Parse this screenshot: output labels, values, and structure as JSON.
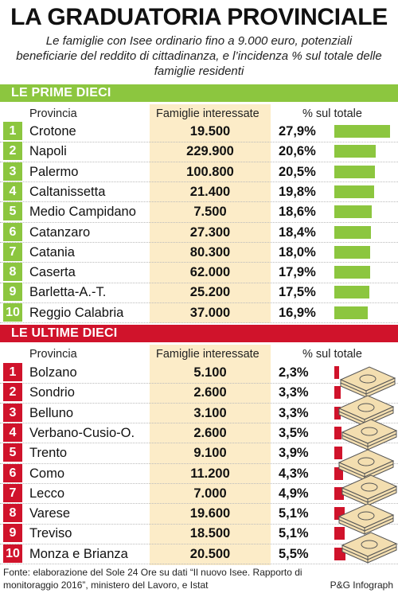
{
  "title": "LA GRADUATORIA PROVINCIALE",
  "subtitle": "Le famiglie con Isee ordinario fino a 9.000 euro, potenziali beneficiarie del reddito di cittadinanza, e l’incidenza % sul totale delle famiglie residenti",
  "columns": {
    "provincia": "Provincia",
    "famiglie": "Famiglie interessate",
    "pct": "% sul totale"
  },
  "colors": {
    "green": "#8cc63f",
    "red": "#d0132b",
    "shade": "#fcecc8"
  },
  "chart_data": [
    {
      "type": "bar",
      "section": "LE PRIME DIECI",
      "rows": [
        {
          "rank": "1",
          "provincia": "Crotone",
          "famiglie": "19.500",
          "pct_label": "27,9%",
          "pct": 27.9
        },
        {
          "rank": "2",
          "provincia": "Napoli",
          "famiglie": "229.900",
          "pct_label": "20,6%",
          "pct": 20.6
        },
        {
          "rank": "3",
          "provincia": "Palermo",
          "famiglie": "100.800",
          "pct_label": "20,5%",
          "pct": 20.5
        },
        {
          "rank": "4",
          "provincia": "Caltanissetta",
          "famiglie": "21.400",
          "pct_label": "19,8%",
          "pct": 19.8
        },
        {
          "rank": "5",
          "provincia": "Medio Campidano",
          "famiglie": "7.500",
          "pct_label": "18,6%",
          "pct": 18.6
        },
        {
          "rank": "6",
          "provincia": "Catanzaro",
          "famiglie": "27.300",
          "pct_label": "18,4%",
          "pct": 18.4
        },
        {
          "rank": "7",
          "provincia": "Catania",
          "famiglie": "80.300",
          "pct_label": "18,0%",
          "pct": 18.0
        },
        {
          "rank": "8",
          "provincia": "Caserta",
          "famiglie": "62.000",
          "pct_label": "17,9%",
          "pct": 17.9
        },
        {
          "rank": "9",
          "provincia": "Barletta-A.-T.",
          "famiglie": "25.200",
          "pct_label": "17,5%",
          "pct": 17.5
        },
        {
          "rank": "10",
          "provincia": "Reggio Calabria",
          "famiglie": "37.000",
          "pct_label": "16,9%",
          "pct": 16.9
        }
      ]
    },
    {
      "type": "bar",
      "section": "LE ULTIME DIECI",
      "rows": [
        {
          "rank": "1",
          "provincia": "Bolzano",
          "famiglie": "5.100",
          "pct_label": "2,3%",
          "pct": 2.3
        },
        {
          "rank": "2",
          "provincia": "Sondrio",
          "famiglie": "2.600",
          "pct_label": "3,3%",
          "pct": 3.3
        },
        {
          "rank": "3",
          "provincia": "Belluno",
          "famiglie": "3.100",
          "pct_label": "3,3%",
          "pct": 3.3
        },
        {
          "rank": "4",
          "provincia": "Verbano-Cusio-O.",
          "famiglie": "2.600",
          "pct_label": "3,5%",
          "pct": 3.5
        },
        {
          "rank": "5",
          "provincia": "Trento",
          "famiglie": "9.100",
          "pct_label": "3,9%",
          "pct": 3.9
        },
        {
          "rank": "6",
          "provincia": "Como",
          "famiglie": "11.200",
          "pct_label": "4,3%",
          "pct": 4.3
        },
        {
          "rank": "7",
          "provincia": "Lecco",
          "famiglie": "7.000",
          "pct_label": "4,9%",
          "pct": 4.9
        },
        {
          "rank": "8",
          "provincia": "Varese",
          "famiglie": "19.600",
          "pct_label": "5,1%",
          "pct": 5.1
        },
        {
          "rank": "9",
          "provincia": "Treviso",
          "famiglie": "18.500",
          "pct_label": "5,1%",
          "pct": 5.1
        },
        {
          "rank": "10",
          "provincia": "Monza e Brianza",
          "famiglie": "20.500",
          "pct_label": "5,5%",
          "pct": 5.5
        }
      ]
    }
  ],
  "source": "Fonte: elaborazione del Sole 24 Ore su dati “Il nuovo Isee. Rapporto di monitoraggio 2016”, ministero del Lavoro, e Istat",
  "credit": "P&G Infograph",
  "illustration": "banknote-stacks-icon"
}
